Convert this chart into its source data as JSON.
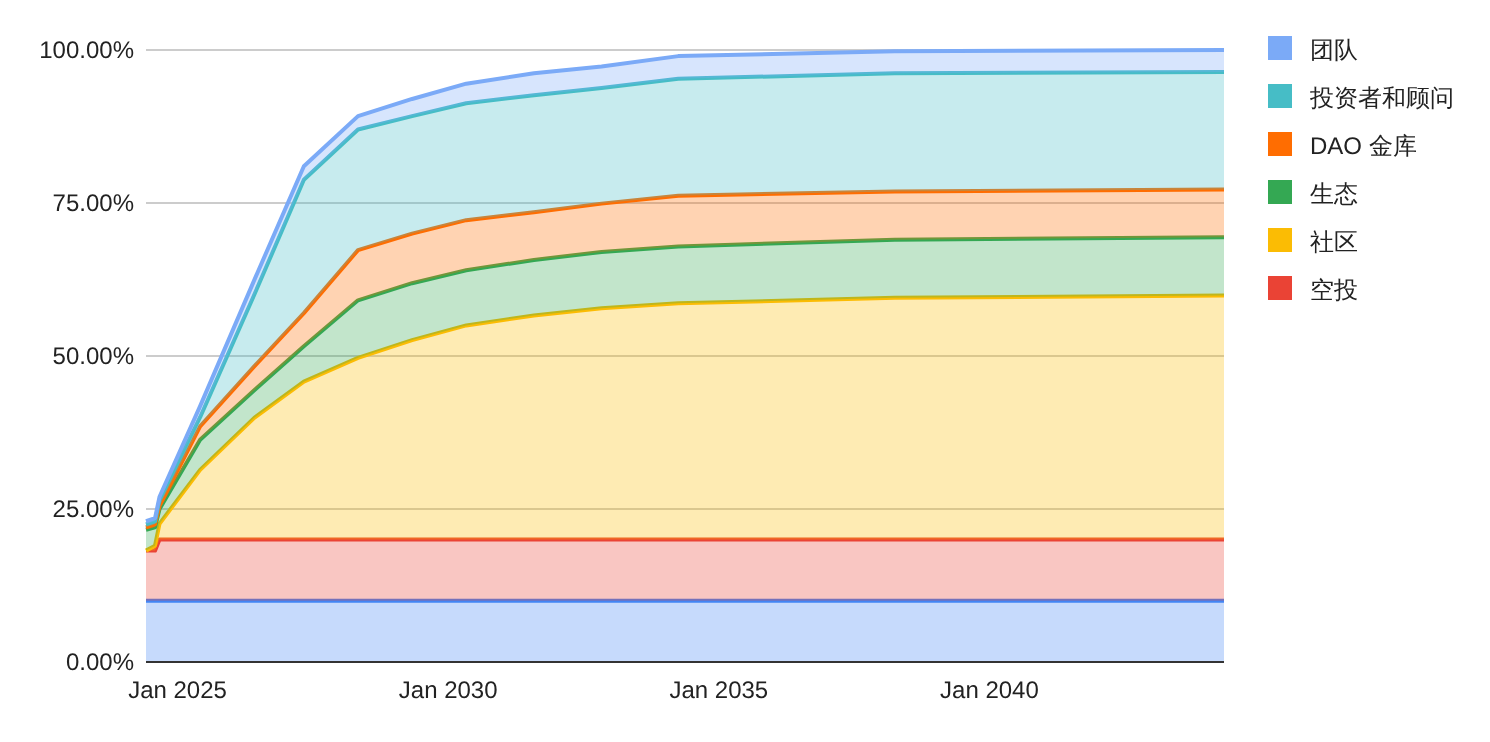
{
  "chart_data": {
    "type": "area",
    "stacked": true,
    "grid": "y",
    "legend": "right",
    "x": [
      "2024-06",
      "2024-08",
      "2024-09",
      "2025-06",
      "2026-06",
      "2027-05",
      "2028-05",
      "2029-05",
      "2030-05",
      "2031-08",
      "2032-11",
      "2034-04",
      "2038-04",
      "2044-05"
    ],
    "xlim": [
      "2024-06",
      "2044-05"
    ],
    "xticks": [
      {
        "value": "2025-01",
        "label": "Jan 2025"
      },
      {
        "value": "2030-01",
        "label": "Jan 2030"
      },
      {
        "value": "2035-01",
        "label": "Jan 2035"
      },
      {
        "value": "2040-01",
        "label": "Jan 2040"
      }
    ],
    "ylim": [
      0,
      100
    ],
    "yticks": [
      {
        "value": 0,
        "label": "0.00%"
      },
      {
        "value": 25,
        "label": "25.00%"
      },
      {
        "value": 50,
        "label": "50.00%"
      },
      {
        "value": 75,
        "label": "75.00%"
      },
      {
        "value": 100,
        "label": "100.00%"
      }
    ],
    "series": [
      {
        "color": "#4285f4",
        "values": [
          10,
          10,
          10,
          10,
          10,
          10,
          10,
          10,
          10,
          10,
          10,
          10,
          10,
          10
        ]
      },
      {
        "name": "空投",
        "color": "#ea4335",
        "values": [
          8.2,
          8.2,
          10,
          10,
          10,
          10,
          10,
          10,
          10,
          10,
          10,
          10,
          10,
          10
        ]
      },
      {
        "name": "社区",
        "color": "#fbbc04",
        "values": [
          0,
          0.8,
          2.6,
          11.4,
          19.9,
          25.8,
          29.7,
          32.6,
          35,
          36.6,
          37.8,
          38.6,
          39.5,
          39.9
        ]
      },
      {
        "name": "生态",
        "color": "#34a853",
        "values": [
          3.4,
          3,
          2.4,
          4.9,
          4.5,
          5.8,
          9.4,
          9.3,
          9,
          9.1,
          9.2,
          9.3,
          9.5,
          9.5
        ]
      },
      {
        "name": "DAO 金库",
        "color": "#ff6d01",
        "values": [
          0.4,
          0.5,
          0.5,
          2.2,
          3.9,
          5.4,
          8.2,
          8.1,
          8.2,
          7.8,
          7.9,
          8.3,
          7.9,
          7.8
        ]
      },
      {
        "name": "投资者和顾问",
        "color": "#46bdc6",
        "values": [
          0.5,
          0.5,
          1,
          1.5,
          11.7,
          21.8,
          19.7,
          19.2,
          19.1,
          19.1,
          18.9,
          19.1,
          19.3,
          19.2
        ]
      },
      {
        "name": "团队",
        "color": "#7baaf7",
        "values": [
          0.5,
          0.5,
          0.5,
          1.8,
          2.4,
          2.2,
          2.2,
          2.8,
          3.2,
          3.6,
          3.5,
          3.7,
          3.6,
          3.6
        ]
      }
    ]
  }
}
